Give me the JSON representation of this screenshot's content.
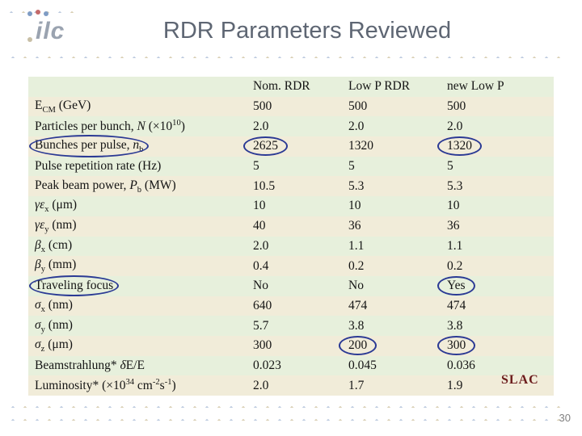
{
  "title": "RDR Parameters Reviewed",
  "logo": {
    "text": "ilc"
  },
  "slac": "SLAC",
  "page_number": "30",
  "table": {
    "headers": [
      "",
      "Nom. RDR",
      "Low P RDR",
      "new Low P"
    ],
    "rows": [
      {
        "label": [
          {
            "t": "E"
          },
          {
            "sub": "CM"
          },
          {
            "t": " (GeV)"
          }
        ],
        "values": [
          "500",
          "500",
          "500"
        ]
      },
      {
        "label": [
          {
            "t": "Particles per bunch, "
          },
          {
            "i": "N"
          },
          {
            "t": " (×10"
          },
          {
            "sup": "10"
          },
          {
            "t": ")"
          }
        ],
        "values": [
          "2.0",
          "2.0",
          "2.0"
        ]
      },
      {
        "label": [
          {
            "t": "Bunches per pulse, "
          },
          {
            "i": "n"
          },
          {
            "sub": "b"
          }
        ],
        "values": [
          "2625",
          "1320",
          "1320"
        ],
        "circles": [
          true,
          true,
          false,
          true
        ]
      },
      {
        "label": [
          {
            "t": "Pulse repetition rate (Hz)"
          }
        ],
        "values": [
          "5",
          "5",
          "5"
        ]
      },
      {
        "label": [
          {
            "t": "Peak beam power, "
          },
          {
            "i": "P"
          },
          {
            "sub": "b"
          },
          {
            "t": " (MW)"
          }
        ],
        "values": [
          "10.5",
          "5.3",
          "5.3"
        ]
      },
      {
        "label": [
          {
            "i": "γε"
          },
          {
            "sub": "x"
          },
          {
            "t": " (μm)"
          }
        ],
        "values": [
          "10",
          "10",
          "10"
        ]
      },
      {
        "label": [
          {
            "i": "γε"
          },
          {
            "sub": "y"
          },
          {
            "t": " (nm)"
          }
        ],
        "values": [
          "40",
          "36",
          "36"
        ]
      },
      {
        "label": [
          {
            "i": "β"
          },
          {
            "sub": "x"
          },
          {
            "t": " (cm)"
          }
        ],
        "values": [
          "2.0",
          "1.1",
          "1.1"
        ]
      },
      {
        "label": [
          {
            "i": "β"
          },
          {
            "sub": "y"
          },
          {
            "t": " (mm)"
          }
        ],
        "values": [
          "0.4",
          "0.2",
          "0.2"
        ]
      },
      {
        "label": [
          {
            "t": "Traveling focus"
          }
        ],
        "values": [
          "No",
          "No",
          "Yes"
        ],
        "circles": [
          true,
          false,
          false,
          true
        ]
      },
      {
        "label": [
          {
            "i": "σ"
          },
          {
            "sub": "x"
          },
          {
            "t": " (nm)"
          }
        ],
        "values": [
          "640",
          "474",
          "474"
        ]
      },
      {
        "label": [
          {
            "i": "σ"
          },
          {
            "sub": "y"
          },
          {
            "t": " (nm)"
          }
        ],
        "values": [
          "5.7",
          "3.8",
          "3.8"
        ]
      },
      {
        "label": [
          {
            "i": "σ"
          },
          {
            "sub": "z"
          },
          {
            "t": " (μm)"
          }
        ],
        "values": [
          "300",
          "200",
          "300"
        ],
        "circles": [
          false,
          false,
          true,
          true
        ]
      },
      {
        "label": [
          {
            "t": "Beamstrahlung*  "
          },
          {
            "i": "δ"
          },
          {
            "t": "E/E"
          }
        ],
        "values": [
          "0.023",
          "0.045",
          "0.036"
        ]
      },
      {
        "label": [
          {
            "t": "Luminosity* (×10"
          },
          {
            "sup": "34"
          },
          {
            "t": " cm"
          },
          {
            "sup": "-2"
          },
          {
            "t": "s"
          },
          {
            "sup": "-1"
          },
          {
            "t": ")"
          }
        ],
        "values": [
          "2.0",
          "1.7",
          "1.9"
        ]
      }
    ]
  },
  "colors": {
    "row_cream": "#f1ecd9",
    "row_green": "#e7f0dc",
    "circle_ink": "#2b3a94",
    "title_gray": "#5e6673",
    "slac_red": "#6b1b1b"
  }
}
